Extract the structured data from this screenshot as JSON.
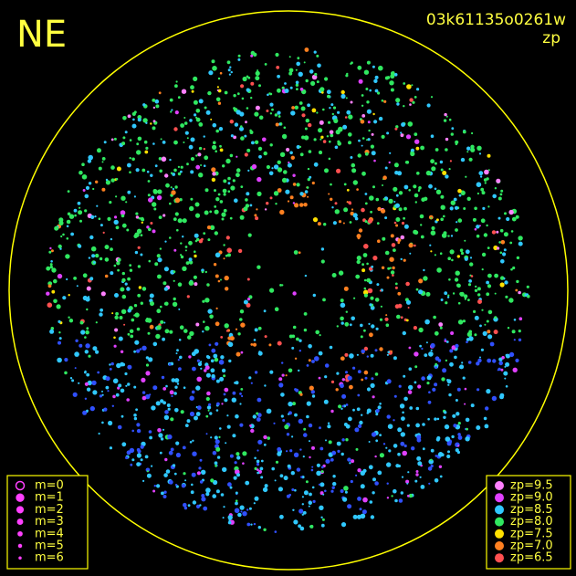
{
  "corner_label": "NE",
  "title": "03k61135o0261w",
  "subtitle": "zp",
  "magnitude_legend": {
    "labels": [
      "m=0",
      "m=1",
      "m=2",
      "m=3",
      "m=4",
      "m=5",
      "m=6"
    ]
  },
  "zp_legend": {
    "labels": [
      "zp=9.5",
      "zp=9.0",
      "zp=8.5",
      "zp=8.0",
      "zp=7.5",
      "zp=7.0",
      "zp=6.5"
    ],
    "colors": [
      "#ff80ff",
      "#e040ff",
      "#30c8ff",
      "#30e860",
      "#ffe000",
      "#ff8020",
      "#ff5050"
    ]
  }
}
